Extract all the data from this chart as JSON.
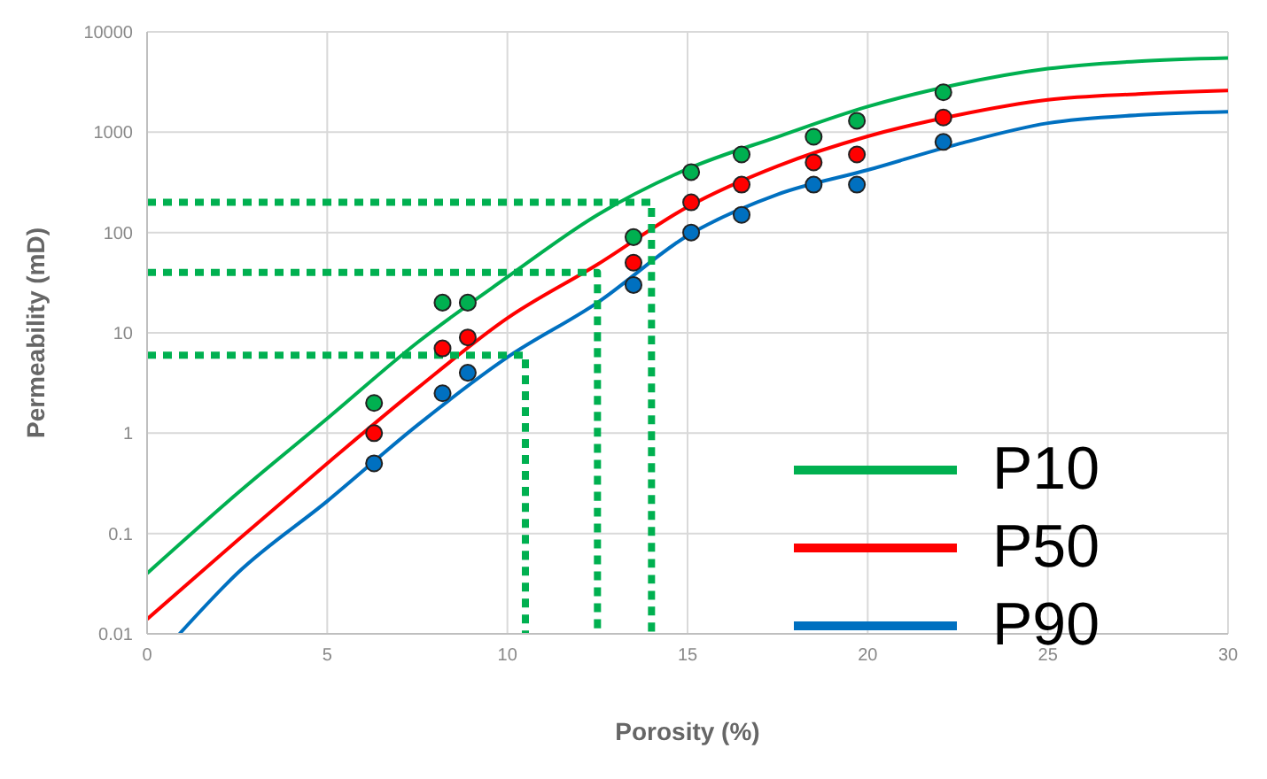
{
  "chart_data": {
    "type": "line",
    "xlabel": "Porosity (%)",
    "ylabel": "Permeability (mD)",
    "xlim": [
      0,
      30
    ],
    "xticks": [
      0,
      5,
      10,
      15,
      20,
      25,
      30
    ],
    "ylim": [
      0.01,
      10000
    ],
    "yticks": [
      0.01,
      0.1,
      1,
      10,
      100,
      1000,
      10000
    ],
    "log": "y",
    "grid": true,
    "legend": "right",
    "series": [
      {
        "name": "P10",
        "color": "#00b050",
        "x": [
          0,
          2.5,
          5,
          7.5,
          10,
          12.5,
          15,
          17.5,
          20,
          22.5,
          25,
          27.5,
          30
        ],
        "values": [
          0.04,
          0.25,
          1.4,
          8,
          36,
          150,
          430,
          900,
          1800,
          3000,
          4300,
          5100,
          5500
        ]
      },
      {
        "name": "P50",
        "color": "#ff0000",
        "x": [
          0,
          2.5,
          5,
          7.5,
          10,
          12.5,
          15,
          17.5,
          20,
          22.5,
          25,
          27.5,
          30
        ],
        "values": [
          0.014,
          0.085,
          0.5,
          2.8,
          14,
          48,
          180,
          460,
          910,
          1480,
          2100,
          2400,
          2600
        ]
      },
      {
        "name": "P90",
        "color": "#0070c0",
        "x": [
          0.9,
          2.5,
          5,
          7.5,
          10,
          12.5,
          15,
          17.5,
          20,
          22.5,
          25,
          27.5,
          30
        ],
        "values": [
          0.01,
          0.04,
          0.21,
          1.2,
          5.7,
          20,
          93,
          240,
          420,
          760,
          1230,
          1480,
          1600
        ]
      },
      {
        "type": "scatter",
        "marker": "circle",
        "color": "#00b050",
        "x": [
          6.3,
          8.2,
          8.9,
          13.5,
          15.1,
          16.5,
          18.5,
          19.7,
          22.1
        ],
        "values": [
          2,
          20,
          20,
          90,
          400,
          600,
          900,
          1300,
          2500
        ]
      },
      {
        "type": "scatter",
        "marker": "circle",
        "color": "#ff0000",
        "x": [
          6.3,
          8.2,
          8.9,
          13.5,
          15.1,
          16.5,
          18.5,
          19.7,
          22.1
        ],
        "values": [
          1,
          7,
          9,
          50,
          200,
          300,
          500,
          600,
          1400
        ]
      },
      {
        "type": "scatter",
        "marker": "circle",
        "color": "#0070c0",
        "x": [
          6.3,
          8.2,
          8.9,
          13.5,
          15.1,
          16.5,
          18.5,
          19.7,
          22.1
        ],
        "values": [
          0.5,
          2.5,
          4,
          30,
          100,
          150,
          300,
          300,
          800
        ]
      },
      {
        "line_style": "dotted",
        "color": "#00b050",
        "x": [
          0,
          14,
          14
        ],
        "values": [
          200,
          200,
          0.01
        ]
      },
      {
        "line_style": "dotted",
        "color": "#00b050",
        "x": [
          0,
          12.5,
          12.5
        ],
        "values": [
          40,
          40,
          0.01
        ]
      },
      {
        "line_style": "dotted",
        "color": "#00b050",
        "x": [
          0,
          10.5,
          10.5
        ],
        "values": [
          6,
          6,
          0.01
        ]
      }
    ]
  }
}
